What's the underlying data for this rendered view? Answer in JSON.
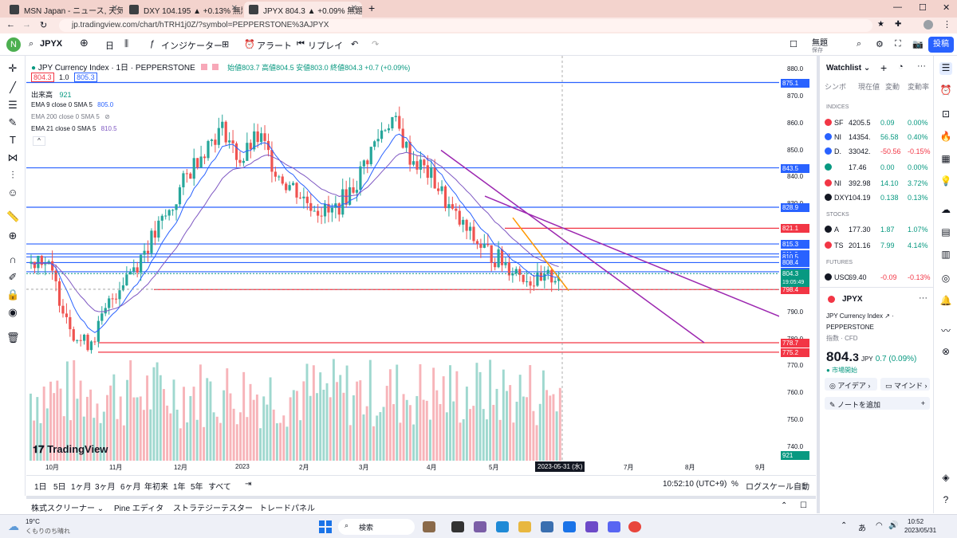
{
  "browser": {
    "tabs": [
      {
        "title": "MSN Japan - ニュース, 天気, メール (",
        "active": false
      },
      {
        "title": "DXY 104.195 ▲ +0.13% 無題",
        "active": false
      },
      {
        "title": "JPYX 804.3 ▲ +0.09% 無題",
        "active": true
      }
    ],
    "url": "jp.tradingview.com/chart/hTRH1j0Z/?symbol=PEPPERSTONE%3AJPYX"
  },
  "toolbar": {
    "symbol": "JPYX",
    "interval": "日",
    "indicators": "インジケーター",
    "alert": "アラート",
    "replay": "リプレイ",
    "layout_name": "無題",
    "layout_sub": "保存",
    "publish": "投稿"
  },
  "legend": {
    "title": "JPY Currency Index · 1日 · PEPPERSTONE",
    "ohlc": "始値803.7 高値804.5 安値803.0 終値804.3 +0.7 (+0.09%)",
    "bid": "804.3",
    "spread": "1.0",
    "ask": "805.3",
    "volume_label": "出来高",
    "volume_value": "921",
    "ema9": "EMA 9 close 0 SMA 5",
    "ema9_value": "805.0",
    "ema200": "EMA 200 close 0 SMA 5",
    "ema21": "EMA 21 close 0 SMA 5",
    "ema21_value": "810.5"
  },
  "chart_data": {
    "type": "candlestick",
    "title": "JPY Currency Index · 1日 · PEPPERSTONE",
    "y_ticks": [
      "880.0",
      "870.0",
      "860.0",
      "850.0",
      "840.0",
      "830.0",
      "820.0",
      "810.0",
      "800.0",
      "790.0",
      "780.0",
      "770.0",
      "760.0",
      "750.0",
      "740.0"
    ],
    "x_ticks": [
      "10月",
      "11月",
      "12月",
      "2023",
      "2月",
      "3月",
      "4月",
      "5月",
      "2023-05-31 (水)",
      "7月",
      "8月",
      "9月"
    ],
    "ylim": [
      735,
      885
    ],
    "closes": [
      808,
      812,
      806,
      798,
      790,
      782,
      778,
      781,
      786,
      794,
      800,
      805,
      808,
      814,
      818,
      824,
      828,
      836,
      842,
      848,
      852,
      856,
      858,
      850,
      846,
      852,
      855,
      848,
      842,
      838,
      836,
      832,
      830,
      828,
      826,
      830,
      834,
      838,
      846,
      852,
      858,
      862,
      856,
      848,
      845,
      842,
      838,
      832,
      826,
      822,
      818,
      815,
      812,
      810,
      808,
      806,
      804,
      802,
      800,
      803,
      804.3
    ],
    "horizontal_levels": {
      "blue": [
        875.1,
        843.5,
        828.9,
        815.3,
        811.6,
        810.5,
        808.4,
        805.0
      ],
      "red": [
        821.1,
        798.4,
        778.7,
        775.2
      ]
    },
    "price_labels": [
      {
        "value": "875.1",
        "color": "#2962ff"
      },
      {
        "value": "843.5",
        "color": "#2962ff"
      },
      {
        "value": "828.9",
        "color": "#2962ff"
      },
      {
        "value": "821.1",
        "color": "#f23645"
      },
      {
        "value": "815.3",
        "color": "#2962ff"
      },
      {
        "value": "811.6",
        "color": "#2962ff"
      },
      {
        "value": "810.5",
        "color": "#2962ff"
      },
      {
        "value": "808.4",
        "color": "#2962ff"
      },
      {
        "value": "805.0",
        "color": "#2962ff"
      },
      {
        "value": "804.3",
        "color": "#089981"
      },
      {
        "value": "798.5",
        "color": "#131722"
      },
      {
        "value": "798.4",
        "color": "#f23645"
      },
      {
        "value": "778.7",
        "color": "#f23645"
      },
      {
        "value": "775.2",
        "color": "#f23645"
      },
      {
        "value": "921",
        "color": "#089981"
      }
    ],
    "countdown": "19:05:49"
  },
  "bottom": {
    "ranges": [
      "1日",
      "5日",
      "1ヶ月",
      "3ヶ月",
      "6ヶ月",
      "年初来",
      "1年",
      "5年",
      "すべて"
    ],
    "time": "10:52:10 (UTC+9)",
    "percent": "%",
    "log": "ログスケール",
    "auto": "自動"
  },
  "panels": [
    "株式スクリーナー",
    "Pine エディタ",
    "ストラテジーテスター",
    "トレードパネル"
  ],
  "watchlist": {
    "title": "Watchlist",
    "headers": [
      "シンボ",
      "現在値",
      "変動",
      "変動率"
    ],
    "sections": {
      "indices": "INDICES",
      "stocks": "STOCKS",
      "futures": "FUTURES"
    },
    "rows": [
      {
        "sym": "SF",
        "last": "4205.5",
        "chg": "0.09",
        "pct": "0.00%",
        "color": "#f23645",
        "dir": "up"
      },
      {
        "sym": "NI",
        "last": "14354.",
        "chg": "56.58",
        "pct": "0.40%",
        "color": "#2962ff",
        "dir": "up"
      },
      {
        "sym": "D.",
        "last": "33042.",
        "chg": "-50.56",
        "pct": "-0.15%",
        "color": "#2962ff",
        "dir": "down"
      },
      {
        "sym": "",
        "last": "17.46",
        "chg": "0.00",
        "pct": "0.00%",
        "color": "#089981",
        "dir": "up"
      },
      {
        "sym": "NI",
        "last": "392.98",
        "chg": "14.10",
        "pct": "3.72%",
        "color": "#f23645",
        "dir": "up"
      },
      {
        "sym": "DXY",
        "last": "104.19",
        "chg": "0.138",
        "pct": "0.13%",
        "color": "#131722",
        "dir": "up"
      },
      {
        "sym": "A",
        "last": "177.30",
        "chg": "1.87",
        "pct": "1.07%",
        "color": "#131722",
        "dir": "up"
      },
      {
        "sym": "TS",
        "last": "201.16",
        "chg": "7.99",
        "pct": "4.14%",
        "color": "#f23645",
        "dir": "up"
      },
      {
        "sym": "USC",
        "last": "69.40",
        "chg": "-0.09",
        "pct": "-0.13%",
        "color": "#131722",
        "dir": "down"
      }
    ],
    "detail": {
      "symbol": "JPYX",
      "name": "JPY Currency Index",
      "exchange": "PEPPERSTONE",
      "type": "指数 · CFD",
      "price_main": "804.",
      "price_last": "3",
      "currency": "JPY",
      "change": "0.7 (0.09%)",
      "market_status": "市場開始",
      "ideas": "アイデア",
      "minds": "マインド",
      "add_note": "ノートを追加"
    }
  },
  "taskbar": {
    "weather_temp": "19°C",
    "weather_desc": "くもりのち晴れ",
    "search": "検索",
    "clock_time": "10:52",
    "clock_date": "2023/05/31"
  }
}
